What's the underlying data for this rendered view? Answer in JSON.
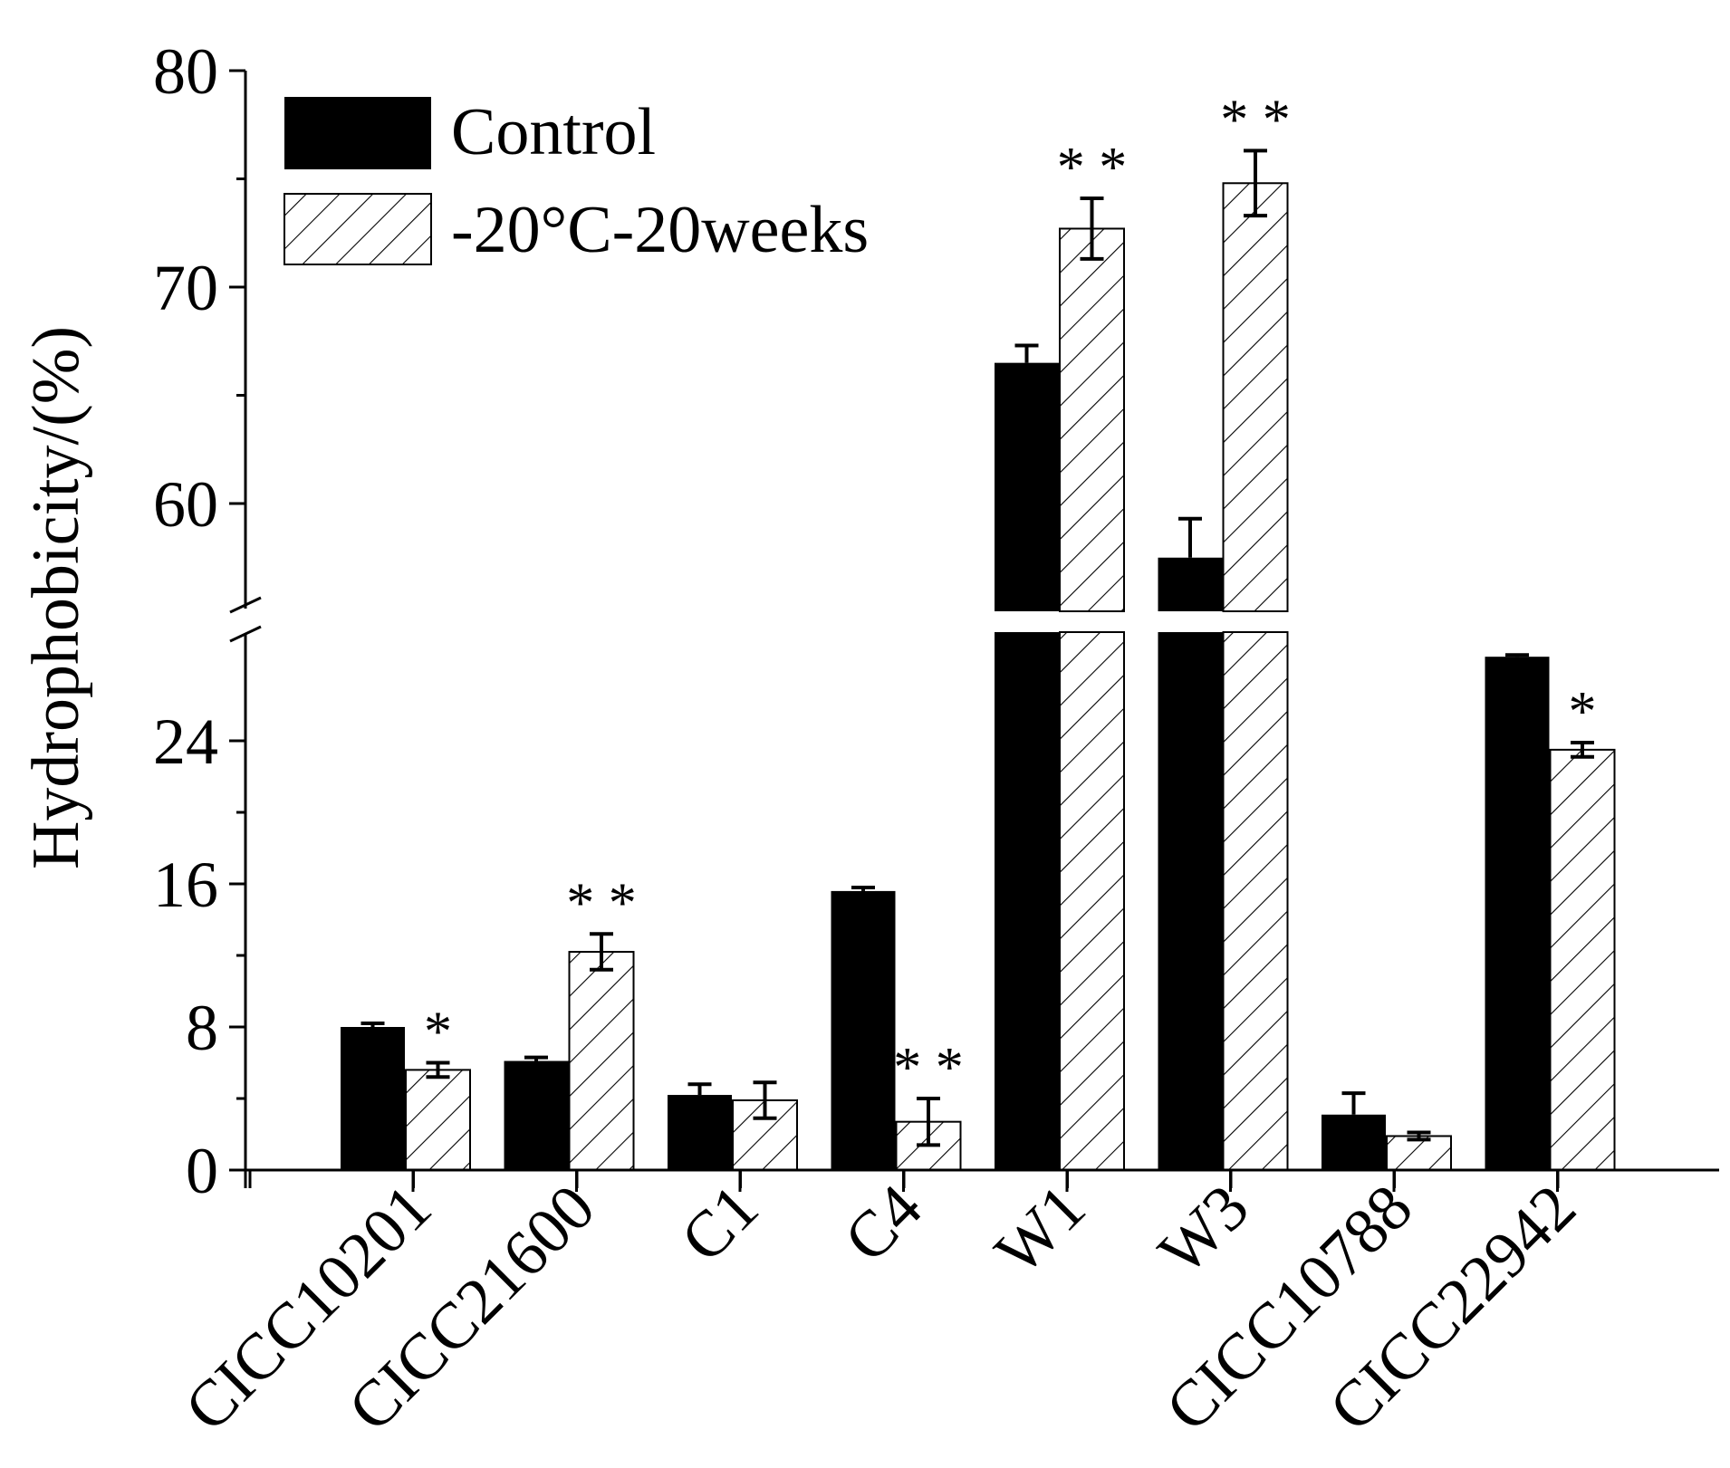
{
  "chart_data": {
    "type": "bar",
    "ylabel": "Hydrophobicity/(%)",
    "xlabel": "",
    "categories": [
      "CICC10201",
      "CICC21600",
      "C1",
      "C4",
      "W1",
      "W3",
      "CICC10788",
      "CICC22942"
    ],
    "series": [
      {
        "name": "Control",
        "values": [
          8.0,
          6.1,
          4.2,
          15.6,
          66.5,
          57.5,
          3.1,
          28.7
        ],
        "errors": [
          0.2,
          0.2,
          0.6,
          0.2,
          0.8,
          1.8,
          1.2,
          0.1
        ],
        "fill": "#000000"
      },
      {
        "name": "-20°C-20weeks",
        "values": [
          5.6,
          12.2,
          3.9,
          2.7,
          72.7,
          74.8,
          1.9,
          23.5
        ],
        "errors": [
          0.4,
          1.0,
          1.0,
          1.3,
          1.4,
          1.5,
          0.2,
          0.4
        ],
        "significance": [
          "*",
          "**",
          "",
          "**",
          "**",
          "**",
          "",
          "*"
        ],
        "fill": "hatched"
      }
    ],
    "axis_break": {
      "lower_segment": [
        0,
        29.5
      ],
      "upper_segment": [
        55,
        80
      ]
    },
    "y_ticks": [
      "0",
      "8",
      "16",
      "24",
      "60",
      "70",
      "80"
    ],
    "legend_position": "top-left"
  }
}
